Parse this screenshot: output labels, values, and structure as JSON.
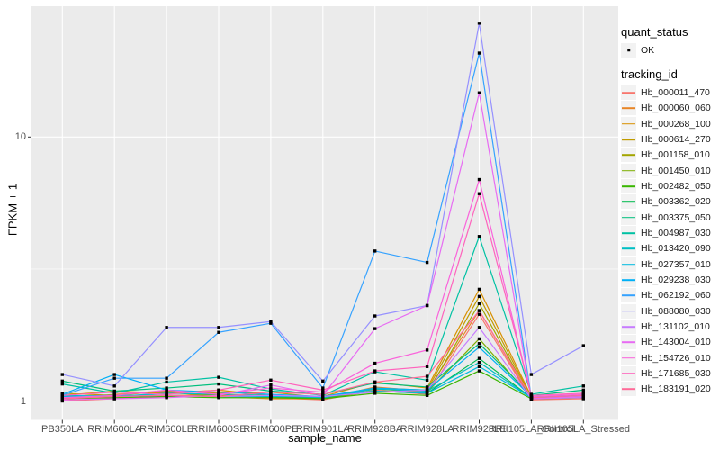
{
  "figure": {
    "background": "#ffffff",
    "panel_background": "#ebebeb",
    "grid_color": "#ffffff",
    "tick_mark_color": "#333333",
    "tick_label_color": "#4d4d4d",
    "point_color": "#000000"
  },
  "chart_data": {
    "type": "line",
    "title": "",
    "xlabel": "sample_name",
    "ylabel": "FPKM + 1",
    "y_scale": "log10",
    "y_tick_labels": [
      "1",
      "10"
    ],
    "y_ticks": [
      1,
      10
    ],
    "y_minor_ticks": [
      3.162
    ],
    "ylim": [
      0.93,
      31
    ],
    "grid": "on",
    "legend_position": "right",
    "point_shape": "small-black-square",
    "categories": [
      "PB350LA",
      "RRIM600LA",
      "RRIM600LE",
      "RRIM600SE",
      "RRIM600PE",
      "RRIM901LA",
      "RRIM928BA",
      "RRIM928LA",
      "RRIM928LE",
      "RRII105LA_Control",
      "RRII105LA_Stressed"
    ],
    "series": [
      {
        "name": "Hb_000011_470",
        "color": "#F8766D",
        "values": [
          1.0,
          1.02,
          1.04,
          1.06,
          1.03,
          1.01,
          1.1,
          1.06,
          2.13,
          1.01,
          1.02
        ]
      },
      {
        "name": "Hb_000060_060",
        "color": "#E88526",
        "values": [
          1.02,
          1.06,
          1.08,
          1.04,
          1.02,
          1.02,
          1.13,
          1.09,
          2.2,
          1.02,
          1.03
        ]
      },
      {
        "name": "Hb_000268_100",
        "color": "#D89000",
        "values": [
          1.05,
          1.09,
          1.07,
          1.1,
          1.05,
          1.04,
          1.18,
          1.12,
          2.65,
          1.04,
          1.05
        ]
      },
      {
        "name": "Hb_000614_270",
        "color": "#C09B00",
        "values": [
          1.07,
          1.05,
          1.09,
          1.07,
          1.08,
          1.03,
          1.12,
          1.1,
          2.49,
          1.03,
          1.04
        ]
      },
      {
        "name": "Hb_001158_010",
        "color": "#A3A500",
        "values": [
          1.03,
          1.04,
          1.05,
          1.05,
          1.04,
          1.02,
          1.09,
          1.07,
          2.34,
          1.02,
          1.03
        ]
      },
      {
        "name": "Hb_001450_010",
        "color": "#7CAE00",
        "values": [
          1.04,
          1.05,
          1.04,
          1.06,
          1.05,
          1.03,
          1.11,
          1.08,
          1.72,
          1.03,
          1.04
        ]
      },
      {
        "name": "Hb_002482_050",
        "color": "#39B600",
        "values": [
          1.02,
          1.03,
          1.04,
          1.03,
          1.03,
          1.02,
          1.07,
          1.05,
          1.3,
          1.02,
          1.03
        ]
      },
      {
        "name": "Hb_003362_020",
        "color": "#00BB4E",
        "values": [
          1.03,
          1.04,
          1.05,
          1.04,
          1.04,
          1.03,
          1.09,
          1.07,
          1.45,
          1.03,
          1.04
        ]
      },
      {
        "name": "Hb_003375_050",
        "color": "#00BF7D",
        "values": [
          1.19,
          1.09,
          1.12,
          1.16,
          1.09,
          1.06,
          1.17,
          1.13,
          1.65,
          1.05,
          1.1
        ]
      },
      {
        "name": "Hb_004987_030",
        "color": "#00C1A3",
        "values": [
          1.16,
          1.07,
          1.18,
          1.23,
          1.11,
          1.05,
          1.29,
          1.2,
          4.2,
          1.06,
          1.14
        ]
      },
      {
        "name": "Hb_013420_090",
        "color": "#00BFC4",
        "values": [
          1.05,
          1.04,
          1.07,
          1.06,
          1.05,
          1.03,
          1.11,
          1.09,
          1.4,
          1.03,
          1.05
        ]
      },
      {
        "name": "Hb_027357_010",
        "color": "#00BAE0",
        "values": [
          1.04,
          1.05,
          1.05,
          1.04,
          1.04,
          1.04,
          1.09,
          1.07,
          1.35,
          1.03,
          1.04
        ]
      },
      {
        "name": "Hb_029238_030",
        "color": "#00B0F6",
        "values": [
          1.06,
          1.26,
          1.1,
          1.08,
          1.06,
          1.04,
          1.12,
          1.1,
          1.6,
          1.04,
          1.05
        ]
      },
      {
        "name": "Hb_062192_060",
        "color": "#35A2FF",
        "values": [
          1.05,
          1.22,
          1.22,
          1.82,
          1.97,
          1.12,
          3.7,
          3.35,
          20.8,
          1.03,
          1.05
        ]
      },
      {
        "name": "Hb_088080_030",
        "color": "#9590FF",
        "values": [
          1.26,
          1.14,
          1.9,
          1.9,
          2.0,
          1.19,
          2.1,
          2.3,
          27.0,
          1.26,
          1.62
        ]
      },
      {
        "name": "Hb_131102_010",
        "color": "#C77CFF",
        "values": [
          1.03,
          1.04,
          1.05,
          1.04,
          1.05,
          1.04,
          1.08,
          1.1,
          1.9,
          1.02,
          1.03
        ]
      },
      {
        "name": "Hb_143004_010",
        "color": "#E76BF3",
        "values": [
          1.01,
          1.02,
          1.03,
          1.05,
          1.15,
          1.05,
          1.88,
          2.3,
          14.7,
          1.02,
          1.04
        ]
      },
      {
        "name": "Hb_154726_010",
        "color": "#FA62DB",
        "values": [
          1.03,
          1.05,
          1.1,
          1.06,
          1.12,
          1.08,
          1.39,
          1.56,
          6.9,
          1.04,
          1.06
        ]
      },
      {
        "name": "Hb_171685_030",
        "color": "#FF62BC",
        "values": [
          1.05,
          1.08,
          1.06,
          1.1,
          1.2,
          1.1,
          1.3,
          1.35,
          6.1,
          1.05,
          1.07
        ]
      },
      {
        "name": "Hb_183191_020",
        "color": "#FF6A98",
        "values": [
          1.02,
          1.04,
          1.05,
          1.04,
          1.08,
          1.06,
          1.18,
          1.24,
          2.2,
          1.03,
          1.05
        ]
      }
    ]
  },
  "legend": {
    "quant_status": {
      "title": "quant_status",
      "items": [
        {
          "label": "OK",
          "marker": "black-square-point"
        }
      ]
    },
    "tracking_id": {
      "title": "tracking_id"
    }
  }
}
